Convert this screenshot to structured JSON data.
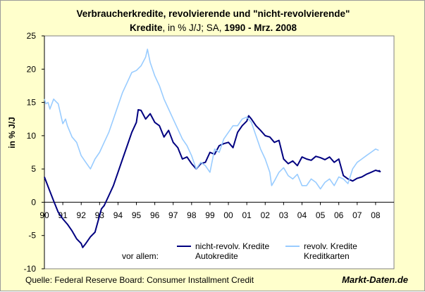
{
  "title": {
    "line1": "Verbraucherkredite, revolvierende und \"nicht-revolvierende\"",
    "line2_bold_a": "Kredite",
    "line2_normal": ", in % J/J; SA, ",
    "line2_bold_b": "1990 - Mrz. 2008"
  },
  "source": "Quelle: Federal Reserve Board: Consumer Installment Credit",
  "brand": "Markt-Daten.de",
  "legend": {
    "prefix": "vor allem:",
    "items": [
      {
        "name": "nicht-revolv. Kredite",
        "sub": "Autokredite"
      },
      {
        "name": "revolv. Kredite",
        "sub": "Kreditkarten"
      }
    ]
  },
  "colors": {
    "background": "#FFFFCC",
    "plot_background": "#FFFFFF",
    "series_nonrevolving": "#000080",
    "series_revolving": "#99CCFF"
  },
  "chart_data": {
    "type": "line",
    "title": "Verbraucherkredite, revolvierende und \"nicht-revolvierende\" Kredite, in % J/J; SA, 1990 - Mrz. 2008",
    "xlabel": "",
    "ylabel": "in % J/J",
    "x_tick_labels": [
      "90",
      "91",
      "92",
      "93",
      "94",
      "95",
      "96",
      "97",
      "98",
      "99",
      "00",
      "01",
      "02",
      "03",
      "04",
      "05",
      "06",
      "07",
      "08"
    ],
    "xlim": [
      1990,
      2009
    ],
    "ylim": [
      -10,
      25
    ],
    "y_ticks": [
      -10,
      -5,
      0,
      5,
      10,
      15,
      20,
      25
    ],
    "grid": false,
    "legend_position": "bottom-right",
    "series": [
      {
        "name": "nicht-revolv. Kredite",
        "key": "series_nonrevolving",
        "points": [
          [
            1990.0,
            3.8
          ],
          [
            1990.25,
            2.0
          ],
          [
            1990.5,
            0.2
          ],
          [
            1990.75,
            -1.5
          ],
          [
            1991.0,
            -2.5
          ],
          [
            1991.25,
            -3.3
          ],
          [
            1991.5,
            -4.3
          ],
          [
            1991.75,
            -5.5
          ],
          [
            1992.0,
            -6.2
          ],
          [
            1992.08,
            -6.8
          ],
          [
            1992.25,
            -6.2
          ],
          [
            1992.5,
            -5.2
          ],
          [
            1992.75,
            -4.5
          ],
          [
            1993.0,
            -2.0
          ],
          [
            1993.1,
            -1.0
          ],
          [
            1993.25,
            -0.5
          ],
          [
            1993.5,
            1.0
          ],
          [
            1993.75,
            2.5
          ],
          [
            1994.0,
            4.5
          ],
          [
            1994.25,
            6.5
          ],
          [
            1994.5,
            8.5
          ],
          [
            1994.75,
            10.5
          ],
          [
            1995.0,
            12.0
          ],
          [
            1995.1,
            13.9
          ],
          [
            1995.25,
            13.8
          ],
          [
            1995.5,
            12.5
          ],
          [
            1995.75,
            13.3
          ],
          [
            1996.0,
            12.0
          ],
          [
            1996.25,
            11.5
          ],
          [
            1996.5,
            9.8
          ],
          [
            1996.75,
            10.8
          ],
          [
            1997.0,
            9.0
          ],
          [
            1997.25,
            8.2
          ],
          [
            1997.5,
            6.5
          ],
          [
            1997.75,
            6.8
          ],
          [
            1998.0,
            5.8
          ],
          [
            1998.25,
            5.0
          ],
          [
            1998.5,
            5.8
          ],
          [
            1998.75,
            6.0
          ],
          [
            1999.0,
            7.5
          ],
          [
            1999.25,
            7.2
          ],
          [
            1999.5,
            8.5
          ],
          [
            1999.75,
            8.8
          ],
          [
            2000.0,
            9.0
          ],
          [
            2000.25,
            8.2
          ],
          [
            2000.5,
            10.5
          ],
          [
            2000.75,
            11.5
          ],
          [
            2001.0,
            12.2
          ],
          [
            2001.1,
            13.0
          ],
          [
            2001.25,
            12.5
          ],
          [
            2001.5,
            11.5
          ],
          [
            2001.75,
            10.8
          ],
          [
            2002.0,
            10.0
          ],
          [
            2002.25,
            9.8
          ],
          [
            2002.5,
            9.0
          ],
          [
            2002.75,
            9.3
          ],
          [
            2003.0,
            6.5
          ],
          [
            2003.25,
            5.8
          ],
          [
            2003.5,
            6.2
          ],
          [
            2003.75,
            5.5
          ],
          [
            2004.0,
            6.8
          ],
          [
            2004.25,
            6.5
          ],
          [
            2004.5,
            6.3
          ],
          [
            2004.75,
            6.9
          ],
          [
            2005.0,
            6.7
          ],
          [
            2005.25,
            6.4
          ],
          [
            2005.5,
            6.8
          ],
          [
            2005.75,
            6.0
          ],
          [
            2006.0,
            6.5
          ],
          [
            2006.25,
            4.0
          ],
          [
            2006.5,
            3.5
          ],
          [
            2006.75,
            3.2
          ],
          [
            2007.0,
            3.6
          ],
          [
            2007.25,
            3.8
          ],
          [
            2007.5,
            4.2
          ],
          [
            2007.75,
            4.5
          ],
          [
            2008.0,
            4.8
          ],
          [
            2008.25,
            4.6
          ],
          [
            2008.17,
            4.8
          ]
        ]
      },
      {
        "name": "revolv. Kredite",
        "key": "series_revolving",
        "points": [
          [
            1990.0,
            15.5
          ],
          [
            1990.08,
            14.8
          ],
          [
            1990.2,
            15.0
          ],
          [
            1990.3,
            14.0
          ],
          [
            1990.5,
            15.5
          ],
          [
            1990.6,
            15.2
          ],
          [
            1990.75,
            14.8
          ],
          [
            1991.0,
            11.8
          ],
          [
            1991.15,
            12.5
          ],
          [
            1991.25,
            11.5
          ],
          [
            1991.5,
            9.8
          ],
          [
            1991.75,
            9.0
          ],
          [
            1992.0,
            7.0
          ],
          [
            1992.25,
            6.0
          ],
          [
            1992.5,
            5.0
          ],
          [
            1992.75,
            6.5
          ],
          [
            1993.0,
            7.5
          ],
          [
            1993.25,
            9.0
          ],
          [
            1993.5,
            10.5
          ],
          [
            1993.75,
            12.5
          ],
          [
            1994.0,
            14.5
          ],
          [
            1994.25,
            16.5
          ],
          [
            1994.5,
            18.0
          ],
          [
            1994.75,
            19.5
          ],
          [
            1995.0,
            19.8
          ],
          [
            1995.25,
            20.5
          ],
          [
            1995.5,
            21.8
          ],
          [
            1995.6,
            23.0
          ],
          [
            1995.75,
            21.0
          ],
          [
            1996.0,
            19.0
          ],
          [
            1996.25,
            17.5
          ],
          [
            1996.5,
            15.5
          ],
          [
            1996.75,
            14.0
          ],
          [
            1997.0,
            12.5
          ],
          [
            1997.25,
            11.0
          ],
          [
            1997.5,
            9.5
          ],
          [
            1997.75,
            8.5
          ],
          [
            1998.0,
            7.0
          ],
          [
            1998.25,
            5.0
          ],
          [
            1998.5,
            6.0
          ],
          [
            1998.75,
            5.5
          ],
          [
            1999.0,
            4.5
          ],
          [
            1999.25,
            8.0
          ],
          [
            1999.5,
            7.5
          ],
          [
            1999.75,
            9.5
          ],
          [
            2000.0,
            10.5
          ],
          [
            2000.25,
            11.5
          ],
          [
            2000.5,
            11.5
          ],
          [
            2000.75,
            12.5
          ],
          [
            2001.0,
            12.8
          ],
          [
            2001.25,
            12.0
          ],
          [
            2001.5,
            10.0
          ],
          [
            2001.75,
            8.0
          ],
          [
            2002.0,
            6.5
          ],
          [
            2002.25,
            4.5
          ],
          [
            2002.35,
            2.5
          ],
          [
            2002.5,
            3.2
          ],
          [
            2002.75,
            4.5
          ],
          [
            2003.0,
            5.2
          ],
          [
            2003.25,
            4.0
          ],
          [
            2003.5,
            3.5
          ],
          [
            2003.75,
            4.2
          ],
          [
            2004.0,
            2.5
          ],
          [
            2004.25,
            2.5
          ],
          [
            2004.5,
            3.5
          ],
          [
            2004.75,
            3.0
          ],
          [
            2005.0,
            2.0
          ],
          [
            2005.25,
            3.0
          ],
          [
            2005.5,
            3.5
          ],
          [
            2005.75,
            2.5
          ],
          [
            2006.0,
            3.8
          ],
          [
            2006.25,
            3.5
          ],
          [
            2006.5,
            2.8
          ],
          [
            2006.75,
            5.0
          ],
          [
            2007.0,
            6.0
          ],
          [
            2007.25,
            6.5
          ],
          [
            2007.5,
            7.0
          ],
          [
            2007.75,
            7.5
          ],
          [
            2008.0,
            8.0
          ],
          [
            2008.17,
            7.8
          ]
        ]
      }
    ]
  }
}
